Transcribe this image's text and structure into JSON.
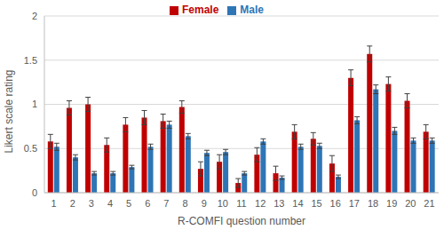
{
  "chart_data": {
    "type": "bar",
    "x_label": "R-COMFI question number",
    "y_label": "Likert scale rating",
    "categories": [
      "1",
      "2",
      "3",
      "4",
      "5",
      "6",
      "7",
      "8",
      "9",
      "10",
      "11",
      "12",
      "13",
      "14",
      "15",
      "16",
      "17",
      "18",
      "19",
      "20",
      "21"
    ],
    "series": [
      {
        "name": "Female",
        "color": "#C00000",
        "values": [
          0.58,
          0.96,
          1.0,
          0.54,
          0.77,
          0.85,
          0.81,
          0.97,
          0.27,
          0.35,
          0.11,
          0.43,
          0.22,
          0.69,
          0.61,
          0.33,
          1.3,
          1.57,
          1.23,
          1.04,
          0.69
        ],
        "errors": [
          0.08,
          0.08,
          0.08,
          0.08,
          0.08,
          0.08,
          0.08,
          0.07,
          0.08,
          0.08,
          0.05,
          0.08,
          0.08,
          0.08,
          0.07,
          0.09,
          0.09,
          0.09,
          0.08,
          0.08,
          0.08
        ]
      },
      {
        "name": "Male",
        "color": "#2E75B6",
        "values": [
          0.52,
          0.4,
          0.22,
          0.22,
          0.29,
          0.52,
          0.77,
          0.64,
          0.45,
          0.46,
          0.22,
          0.58,
          0.17,
          0.52,
          0.53,
          0.18,
          0.82,
          1.17,
          0.7,
          0.59,
          0.59
        ],
        "errors": [
          0.04,
          0.03,
          0.02,
          0.02,
          0.02,
          0.03,
          0.04,
          0.03,
          0.03,
          0.03,
          0.02,
          0.03,
          0.02,
          0.03,
          0.03,
          0.02,
          0.04,
          0.05,
          0.04,
          0.03,
          0.03
        ]
      }
    ],
    "ylim": [
      0,
      2
    ],
    "yticks": [
      0,
      0.5,
      1,
      1.5,
      2
    ],
    "grid": true,
    "legend": "top"
  }
}
